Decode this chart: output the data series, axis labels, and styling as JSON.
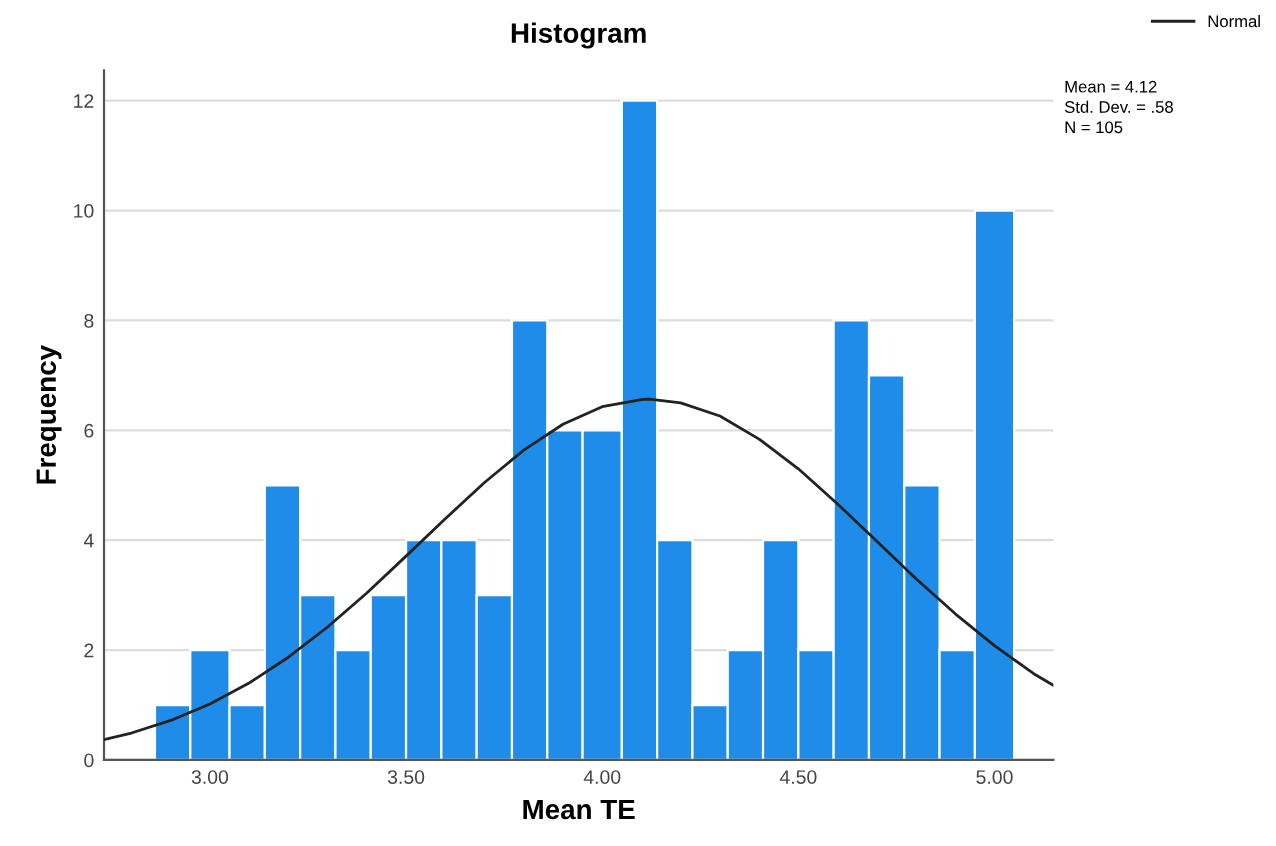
{
  "chart_data": {
    "type": "histogram",
    "title": "Histogram",
    "xlabel": "Mean TE",
    "ylabel": "Frequency",
    "bins": [
      2.86,
      2.95,
      3.05,
      3.14,
      3.23,
      3.32,
      3.41,
      3.5,
      3.59,
      3.68,
      3.77,
      3.86,
      3.95,
      4.05,
      4.14,
      4.23,
      4.32,
      4.41,
      4.5,
      4.59,
      4.68,
      4.77,
      4.86,
      4.95,
      5.05
    ],
    "values": [
      1,
      2,
      1,
      5,
      3,
      2,
      3,
      4,
      4,
      3,
      8,
      6,
      6,
      12,
      4,
      1,
      2,
      4,
      2,
      8,
      7,
      5,
      2,
      10
    ],
    "color": "#1e8ce8",
    "series": [
      {
        "type": "line",
        "name": "Normal",
        "color": "#222222",
        "x": [
          2.73,
          2.8,
          2.9,
          3.0,
          3.1,
          3.2,
          3.3,
          3.4,
          3.5,
          3.6,
          3.7,
          3.8,
          3.9,
          4.0,
          4.1,
          4.12,
          4.2,
          4.3,
          4.4,
          4.5,
          4.6,
          4.7,
          4.8,
          4.9,
          5.0,
          5.1,
          5.15
        ],
        "values": [
          0.37,
          0.49,
          0.72,
          1.02,
          1.4,
          1.87,
          2.42,
          3.04,
          3.71,
          4.39,
          5.05,
          5.64,
          6.11,
          6.43,
          6.56,
          6.57,
          6.5,
          6.26,
          5.84,
          5.3,
          4.66,
          3.98,
          3.3,
          2.66,
          2.08,
          1.57,
          1.36
        ]
      }
    ],
    "xlim": [
      2.73,
      5.15
    ],
    "xticks": [
      {
        "value": 3,
        "label": "3.00"
      },
      {
        "value": 3.5,
        "label": "3.50"
      },
      {
        "value": 4,
        "label": "4.00"
      },
      {
        "value": 4.5,
        "label": "4.50"
      },
      {
        "value": 5,
        "label": "5.00"
      }
    ],
    "ylim": [
      0,
      12.55
    ],
    "yticks": [
      0,
      2,
      4,
      6,
      8,
      10,
      12
    ],
    "grid": "y",
    "legend": "top right",
    "annotations": [
      "Mean = 4.12",
      "Std. Dev. = .58",
      "N = 105"
    ]
  }
}
